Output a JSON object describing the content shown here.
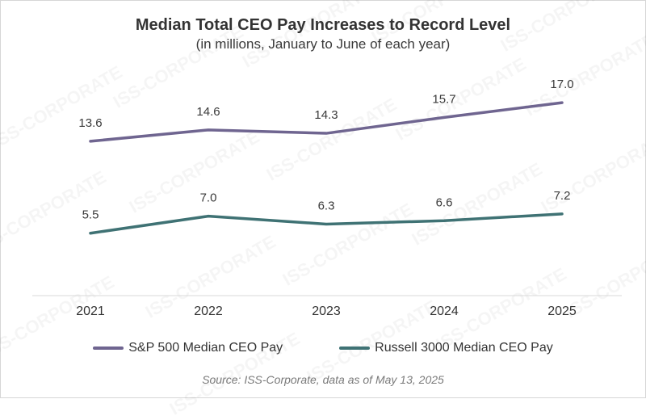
{
  "chart_data": {
    "type": "line",
    "title": "Median Total CEO Pay Increases to Record Level",
    "subtitle": "(in millions, January to June of each year)",
    "categories": [
      "2021",
      "2022",
      "2023",
      "2024",
      "2025"
    ],
    "series": [
      {
        "name": "S&P 500 Median CEO Pay",
        "values": [
          13.6,
          14.6,
          14.3,
          15.7,
          17.0
        ],
        "labels": [
          "13.6",
          "14.6",
          "14.3",
          "15.7",
          "17.0"
        ],
        "color": "#6f6590"
      },
      {
        "name": "Russell 3000 Median CEO Pay",
        "values": [
          5.5,
          7.0,
          6.3,
          6.6,
          7.2
        ],
        "labels": [
          "5.5",
          "7.0",
          "6.3",
          "6.6",
          "7.2"
        ],
        "color": "#3f7274"
      }
    ],
    "ylim": [
      0,
      19
    ],
    "grid": false,
    "legend_position": "bottom",
    "source": "Source: ISS-Corporate, data as of May 13, 2025",
    "watermark": "ISS-CORPORATE"
  }
}
